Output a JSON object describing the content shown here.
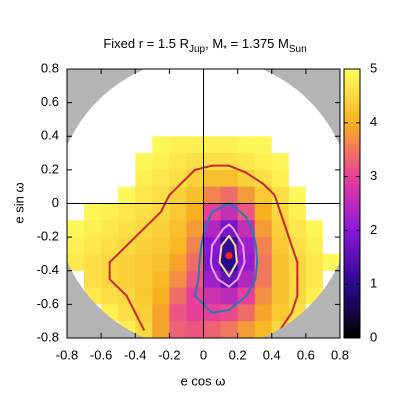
{
  "chart_data": {
    "type": "heatmap",
    "title": [
      "Fixed r = 1.5 R",
      "Jup",
      ", M",
      "*",
      " = 1.375 M",
      "Sun"
    ],
    "xlabel": "e cos ω",
    "ylabel": "e sin ω",
    "xlim": [
      -0.8,
      0.8
    ],
    "xticks": [
      -0.8,
      -0.6,
      -0.4,
      -0.2,
      0,
      0.2,
      0.4,
      0.6,
      0.8
    ],
    "ylim": [
      -0.8,
      0.8
    ],
    "yticks": [
      -0.8,
      -0.6,
      -0.4,
      -0.2,
      0,
      0.2,
      0.4,
      0.6,
      0.8
    ],
    "zlim": [
      0,
      5
    ],
    "zticks": [
      0,
      1,
      2,
      3,
      4,
      5
    ],
    "colormap": [
      "#000000",
      "#2a0a8c",
      "#8a18d8",
      "#e8409a",
      "#f8b020",
      "#ffff60"
    ],
    "over_color": "#ffffff",
    "outside_color": "#b4b4b4",
    "region_radius": 0.87,
    "zero_axes": true,
    "x": [
      -0.75,
      -0.65,
      -0.55,
      -0.45,
      -0.35,
      -0.25,
      -0.15,
      -0.05,
      0.05,
      0.15,
      0.25,
      0.35,
      0.45,
      0.55,
      0.65,
      0.75
    ],
    "y": [
      0.75,
      0.65,
      0.55,
      0.45,
      0.35,
      0.25,
      0.15,
      0.05,
      -0.05,
      -0.15,
      -0.25,
      -0.35,
      -0.45,
      -0.55,
      -0.65,
      -0.75
    ],
    "z": [
      [
        6,
        6,
        6,
        6,
        6,
        6,
        6,
        6,
        6,
        6,
        6,
        6,
        6,
        6,
        6,
        6
      ],
      [
        6,
        6,
        6,
        6,
        6,
        6,
        6,
        6,
        6,
        6,
        6,
        6,
        6,
        6,
        6,
        6
      ],
      [
        6,
        6,
        6,
        6,
        6,
        6,
        6,
        6,
        6,
        6,
        6,
        6,
        6,
        6,
        6,
        6
      ],
      [
        6,
        6,
        6,
        6,
        6,
        6,
        6,
        6,
        6,
        6,
        6,
        6,
        6,
        6,
        6,
        6
      ],
      [
        6,
        6,
        6,
        6,
        6,
        4.9,
        4.8,
        4.8,
        4.8,
        4.8,
        4.9,
        4.9,
        6,
        6,
        6,
        6
      ],
      [
        6,
        6,
        6,
        6,
        4.9,
        4.8,
        4.7,
        4.6,
        4.6,
        4.6,
        4.7,
        4.8,
        4.9,
        6,
        6,
        6
      ],
      [
        6,
        6,
        6,
        6,
        4.8,
        4.7,
        4.6,
        4.4,
        4.2,
        4.2,
        4.4,
        4.6,
        4.8,
        6,
        6,
        6
      ],
      [
        6,
        6,
        6,
        4.9,
        4.7,
        4.6,
        4.4,
        4.2,
        3.6,
        3.4,
        3.8,
        4.3,
        4.6,
        4.9,
        6,
        6
      ],
      [
        6,
        4.9,
        4.8,
        4.7,
        4.6,
        4.5,
        4.3,
        4,
        3,
        2.6,
        3.2,
        4,
        4.5,
        4.8,
        6,
        6
      ],
      [
        4.9,
        4.8,
        4.7,
        4.6,
        4.5,
        4.4,
        4.2,
        3.8,
        2.4,
        1.8,
        2.6,
        3.8,
        4.4,
        4.7,
        4.9,
        6
      ],
      [
        4.8,
        4.7,
        4.6,
        4.5,
        4.4,
        4.3,
        4.1,
        3.6,
        2,
        1.1,
        2.2,
        3.6,
        4.3,
        4.6,
        4.8,
        6
      ],
      [
        4.7,
        4.6,
        4.5,
        4.4,
        4.3,
        4.2,
        3.9,
        3.4,
        1.9,
        1,
        2.1,
        3.5,
        4.2,
        4.5,
        4.7,
        4.9
      ],
      [
        6,
        4.6,
        4.5,
        4.4,
        4.3,
        4.1,
        3.7,
        3.2,
        2.2,
        1.6,
        2.4,
        3.5,
        4.2,
        4.5,
        4.7,
        6
      ],
      [
        6,
        4.7,
        4.6,
        4.5,
        4.3,
        4,
        3.4,
        3,
        2.7,
        2.5,
        3,
        3.7,
        4.2,
        4.5,
        4.8,
        6
      ],
      [
        6,
        6,
        4.8,
        4.6,
        4.4,
        3.9,
        3.2,
        3,
        3,
        3.1,
        3.4,
        3.9,
        4.3,
        4.6,
        6,
        6
      ],
      [
        6,
        6,
        6,
        4.8,
        4.5,
        3.9,
        3.3,
        3.2,
        3.3,
        3.5,
        3.8,
        4.1,
        4.5,
        4.8,
        6,
        6
      ]
    ],
    "contours": [
      {
        "level": 4.5,
        "color": "#c8282a"
      },
      {
        "level": 3,
        "color": "#2878b8"
      },
      {
        "level": 2,
        "color": "#e8a0e0"
      },
      {
        "level": 1.5,
        "color": "#f0e090"
      }
    ],
    "best_fit": {
      "x": 0.15,
      "y": -0.31,
      "color": "#ff2020"
    }
  }
}
